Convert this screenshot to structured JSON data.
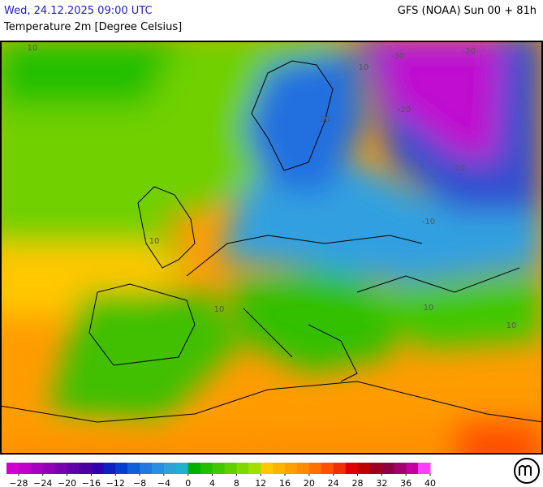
{
  "header": {
    "datetime": "Wed, 24.12.2025 09:00 UTC",
    "model": "GFS (NOAA) Sun 00 + 81h",
    "title": "Temperature 2m [Degree Celsius]"
  },
  "map_labels": [
    "-30",
    "-20",
    "-20",
    "-10",
    "10",
    "10",
    "10",
    "10",
    "10",
    "10",
    "10",
    "-10"
  ],
  "legend": {
    "range": [
      -30,
      40
    ],
    "colors": [
      "#d000d0",
      "#c000c8",
      "#a800c0",
      "#9000b8",
      "#7800b0",
      "#6000a8",
      "#4800a0",
      "#3000b0",
      "#1020c0",
      "#0040d0",
      "#1060d8",
      "#2078e0",
      "#2890e0",
      "#30a0d8",
      "#20b0d0",
      "#00b000",
      "#20c000",
      "#40c800",
      "#60d000",
      "#80d800",
      "#a0e000",
      "#ffc800",
      "#ffb400",
      "#ffa000",
      "#ff8c00",
      "#ff7000",
      "#ff5000",
      "#f03000",
      "#e00000",
      "#c00000",
      "#a00020",
      "#900040",
      "#a00070",
      "#c000a0",
      "#ff40ff"
    ],
    "ticks": [
      {
        "value": -28,
        "label": "−28"
      },
      {
        "value": -24,
        "label": "−24"
      },
      {
        "value": -20,
        "label": "−20"
      },
      {
        "value": -16,
        "label": "−16"
      },
      {
        "value": -12,
        "label": "−12"
      },
      {
        "value": -8,
        "label": "−8"
      },
      {
        "value": -4,
        "label": "−4"
      },
      0,
      4,
      8,
      12,
      16,
      20,
      24,
      28,
      32,
      36,
      40
    ]
  }
}
